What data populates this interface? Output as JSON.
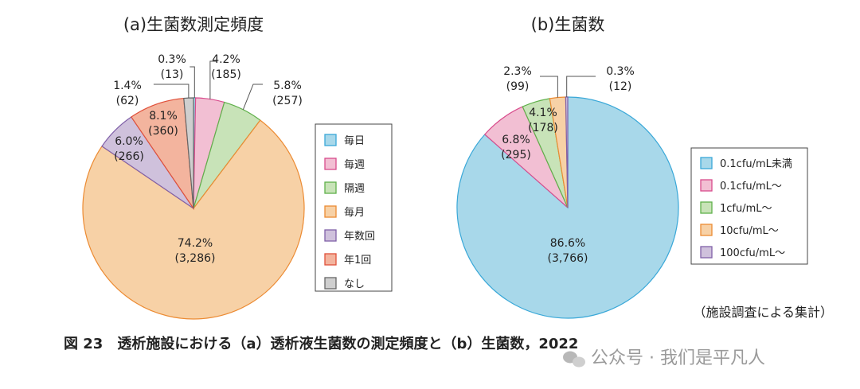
{
  "chart_data": [
    {
      "type": "pie",
      "title": "(a)生菌数測定頻度",
      "slices": [
        {
          "label": "毎日",
          "pct": "0.3%",
          "count": "(13)",
          "value": 0.3,
          "color": "#a8d8ea",
          "stroke": "#3aa8d8"
        },
        {
          "label": "毎週",
          "pct": "4.2%",
          "count": "(185)",
          "value": 4.2,
          "color": "#f2bfd3",
          "stroke": "#d84c8c"
        },
        {
          "label": "隔週",
          "pct": "5.8%",
          "count": "(257)",
          "value": 5.8,
          "color": "#c8e3b8",
          "stroke": "#5fb04a"
        },
        {
          "label": "毎月",
          "pct": "74.2%",
          "count": "(3,286)",
          "value": 74.2,
          "color": "#f7d1a6",
          "stroke": "#ec8b33"
        },
        {
          "label": "年数回",
          "pct": "6.0%",
          "count": "(266)",
          "value": 6.0,
          "color": "#cfc1dc",
          "stroke": "#8060a8"
        },
        {
          "label": "年1回",
          "pct": "8.1%",
          "count": "(360)",
          "value": 8.1,
          "color": "#f3b49e",
          "stroke": "#e0503a"
        },
        {
          "label": "なし",
          "pct": "1.4%",
          "count": "(62)",
          "value": 1.4,
          "color": "#cfcfcf",
          "stroke": "#666666"
        }
      ]
    },
    {
      "type": "pie",
      "title": "(b)生菌数",
      "slices": [
        {
          "label": "0.1cfu/mL未満",
          "pct": "86.6%",
          "count": "(3,766)",
          "value": 86.6,
          "color": "#a8d8ea",
          "stroke": "#3aa8d8"
        },
        {
          "label": "0.1cfu/mL～",
          "pct": "6.8%",
          "count": "(295)",
          "value": 6.8,
          "color": "#f2bfd3",
          "stroke": "#d84c8c"
        },
        {
          "label": "1cfu/mL～",
          "pct": "4.1%",
          "count": "(178)",
          "value": 4.1,
          "color": "#c8e3b8",
          "stroke": "#5fb04a"
        },
        {
          "label": "10cfu/mL～",
          "pct": "2.3%",
          "count": "(99)",
          "value": 2.3,
          "color": "#f7d1a6",
          "stroke": "#ec8b33"
        },
        {
          "label": "100cfu/mL～",
          "pct": "0.3%",
          "count": "(12)",
          "value": 0.3,
          "color": "#cfc1dc",
          "stroke": "#8060a8"
        }
      ]
    }
  ],
  "source_note": "（施設調査による集計）",
  "caption": "図 23　透析施設における（a）透析液生菌数の測定頻度と（b）生菌数，2022",
  "watermark": "公众号 · 我们是平凡人"
}
